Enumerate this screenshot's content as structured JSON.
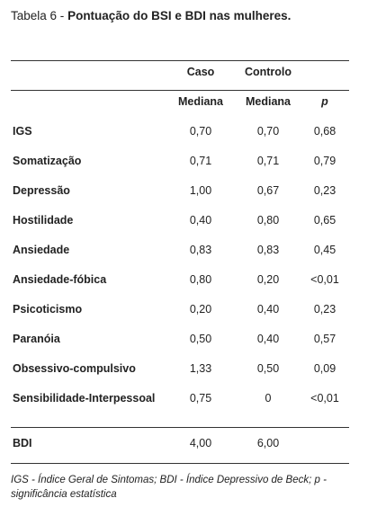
{
  "title": {
    "label": "Tabela 6 -",
    "text": "Pontuação do BSI e BDI nas mulheres."
  },
  "table": {
    "header": [
      [
        "Caso",
        "Controlo"
      ],
      [
        "Mediana",
        "Mediana",
        "p"
      ]
    ],
    "rows": [
      [
        "IGS",
        "0,70",
        "0,70",
        "0,68"
      ],
      [
        "Somatização",
        "0,71",
        "0,71",
        "0,79"
      ],
      [
        "Depressão",
        "1,00",
        "0,67",
        "0,23"
      ],
      [
        "Hostilidade",
        "0,40",
        "0,80",
        "0,65"
      ],
      [
        "Ansiedade",
        "0,83",
        "0,83",
        "0,45"
      ],
      [
        "Ansiedade-fóbica",
        "0,80",
        "0,20",
        "<0,01"
      ],
      [
        "Psicoticismo",
        "0,20",
        "0,40",
        "0,23"
      ],
      [
        "Paranóia",
        "0,50",
        "0,40",
        "0,57"
      ],
      [
        "Obsessivo-compulsivo",
        "1,33",
        "0,50",
        "0,09"
      ],
      [
        "Sensibilidade-Interpessoal",
        "0,75",
        "0",
        "<0,01"
      ]
    ],
    "summary": [
      "BDI",
      "4,00",
      "6,00"
    ]
  },
  "footnote": "IGS - Índice Geral de Sintomas; BDI - Índice Depressivo de Beck; p - significância estatística"
}
